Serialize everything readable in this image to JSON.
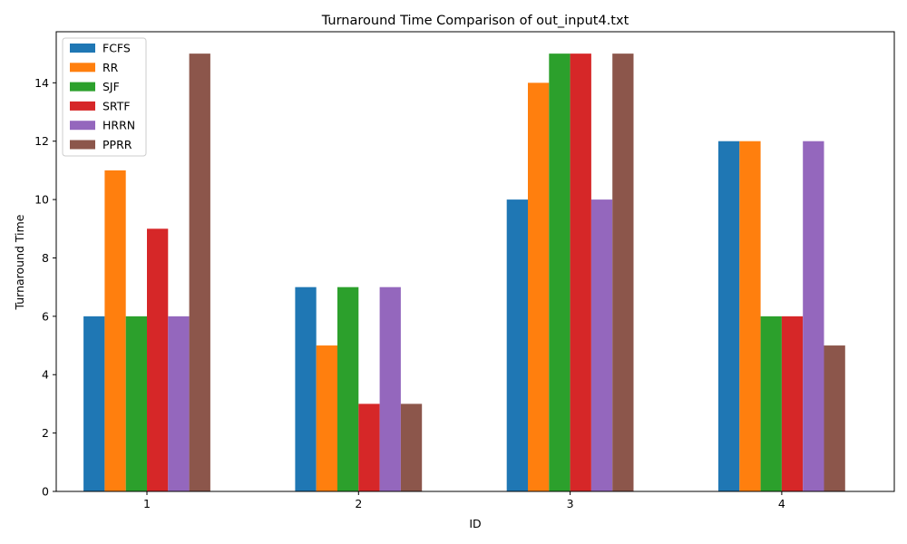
{
  "chart_data": {
    "type": "bar",
    "title": "Turnaround Time Comparison of out_input4.txt",
    "xlabel": "ID",
    "ylabel": "Turnaround Time",
    "categories": [
      "1",
      "2",
      "3",
      "4"
    ],
    "ylim": [
      0,
      15.75
    ],
    "yticks": [
      0,
      2,
      4,
      6,
      8,
      10,
      12,
      14
    ],
    "grid": false,
    "legend_position": "top-left",
    "series": [
      {
        "name": "FCFS",
        "color": "#1f77b4",
        "values": [
          6,
          7,
          10,
          12
        ]
      },
      {
        "name": "RR",
        "color": "#ff7f0e",
        "values": [
          11,
          5,
          14,
          12
        ]
      },
      {
        "name": "SJF",
        "color": "#2ca02c",
        "values": [
          6,
          7,
          15,
          6
        ]
      },
      {
        "name": "SRTF",
        "color": "#d62728",
        "values": [
          9,
          3,
          15,
          6
        ]
      },
      {
        "name": "HRRN",
        "color": "#9467bd",
        "values": [
          6,
          7,
          10,
          12
        ]
      },
      {
        "name": "PPRR",
        "color": "#8c564b",
        "values": [
          15,
          3,
          15,
          5
        ]
      }
    ]
  }
}
